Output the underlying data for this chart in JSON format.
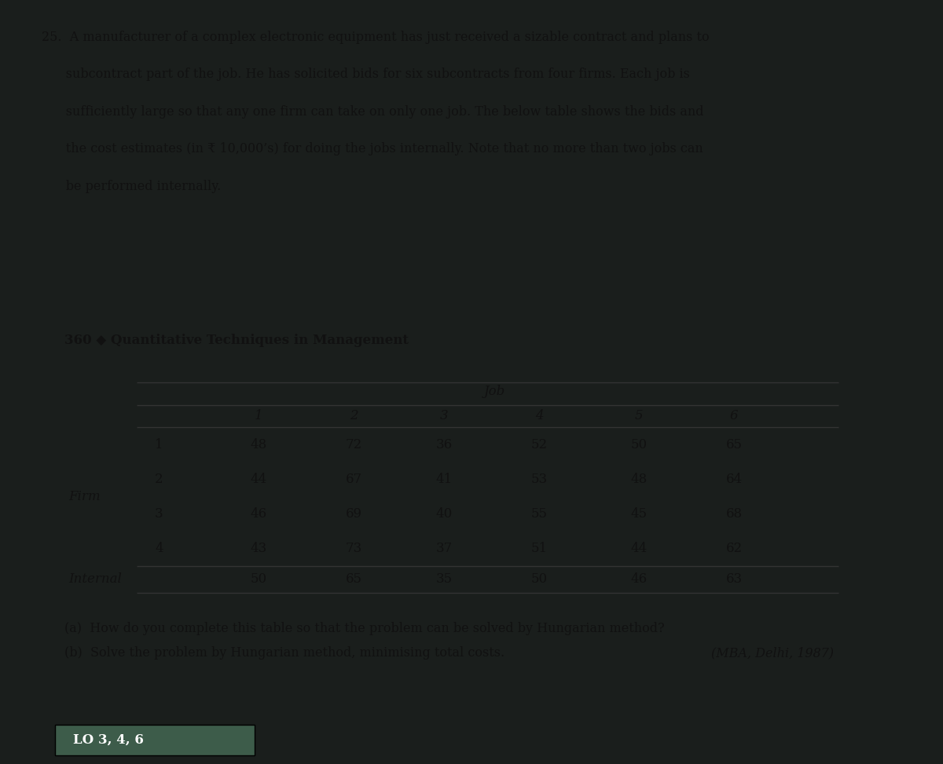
{
  "top_text_lines": [
    "25.  A manufacturer of a complex electronic equipment has just received a sizable contract and plans to",
    "      subcontract part of the job. He has solicited bids for six subcontracts from four firms. Each job is",
    "      sufficiently large so that any one firm can take on only one job. The below table shows the bids and",
    "      the cost estimates (in ₹ 10,000’s) for doing the jobs internally. Note that no more than two jobs can",
    "      be performed internally."
  ],
  "page_header": "360 ◆ Quantitative Techniques in Management",
  "table_header_top": "Job",
  "col_headers": [
    "1",
    "2",
    "3",
    "4",
    "5",
    "6"
  ],
  "row_label_outer": "Firm",
  "row_labels": [
    "1",
    "2",
    "3",
    "4"
  ],
  "internal_label": "Internal",
  "table_data": [
    [
      48,
      72,
      36,
      52,
      50,
      65
    ],
    [
      44,
      67,
      41,
      53,
      48,
      64
    ],
    [
      46,
      69,
      40,
      55,
      45,
      68
    ],
    [
      43,
      73,
      37,
      51,
      44,
      62
    ]
  ],
  "internal_row": [
    50,
    65,
    35,
    50,
    46,
    63
  ],
  "question_a": "(a)  How do you complete this table so that the problem can be solved by Hungarian method?",
  "question_b": "(b)  Solve the problem by Hungarian method, minimising total costs.",
  "question_b_ref": "(MBA, Delhi, 1987)",
  "footer": "LO 3, 4, 6",
  "bg_page_top": "#f5f2ee",
  "bg_page_bot": "#f0ede8",
  "bg_dark": "#1a1e1c",
  "text_color": "#111111",
  "footer_bg": "#3d5c4a",
  "footer_text": "#ffffff",
  "line_color": "#333333"
}
